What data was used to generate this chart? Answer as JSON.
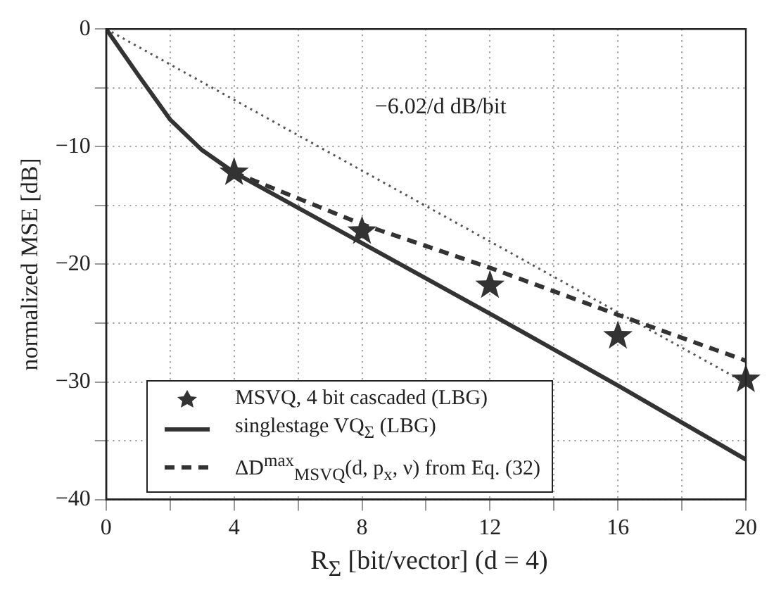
{
  "chart_data": {
    "type": "line",
    "xlabel": "R$_{Σ}$  [bit/vector] (d = 4)",
    "ylabel": "normalized MSE [dB]",
    "xlim": [
      0,
      20
    ],
    "xticks": [
      0,
      {
        "value": 2,
        "label": null
      },
      4,
      {
        "value": 6,
        "label": null
      },
      8,
      {
        "value": 10,
        "label": null
      },
      12,
      {
        "value": 14,
        "label": null
      },
      16,
      {
        "value": 18,
        "label": null
      },
      20
    ],
    "ylim": [
      -40,
      0
    ],
    "yticks": [
      -40,
      {
        "value": -35,
        "label": null
      },
      -30,
      {
        "value": -25,
        "label": null
      },
      -20,
      {
        "value": -15,
        "label": null
      },
      -10,
      {
        "value": -5,
        "label": null
      },
      0
    ],
    "grid": true,
    "legend": "bottom left",
    "annotations": [
      "−6.02/d dB/bit"
    ],
    "series": [
      {
        "name": "MSVQ, 4 bit cascaded (LBG)",
        "type": "scatter",
        "marker": "star",
        "color": "#333333",
        "x": [
          4,
          8,
          12,
          16,
          20
        ],
        "values": [
          -12.2,
          -17.2,
          -21.8,
          -26.1,
          -29.8
        ]
      },
      {
        "name": "singlestage VQ$_{Σ}$ (LBG)",
        "type": "line",
        "line_style": "solid",
        "marker": "none",
        "color": "#333333",
        "x": [
          0,
          1,
          2,
          3,
          4,
          8,
          12,
          16,
          20
        ],
        "values": [
          0,
          -3.9,
          -7.7,
          -10.3,
          -12.2,
          -18.2,
          -24.2,
          -30.3,
          -36.6
        ]
      },
      {
        "name": "ΔD$^{max}$$_{MSVQ}$(d, p$_{x}$, ν) from Eq. (32)",
        "type": "line",
        "line_style": "dashed",
        "marker": "none",
        "color": "#333333",
        "x": [
          4,
          8,
          12,
          16,
          20
        ],
        "values": [
          -12.2,
          -16.6,
          -20.3,
          -24.3,
          -28.2
        ]
      },
      {
        "type": "line",
        "line_style": "dotted",
        "marker": "none",
        "color": "#555555",
        "x": [
          0,
          20
        ],
        "values": [
          0,
          -30.1
        ]
      }
    ]
  }
}
